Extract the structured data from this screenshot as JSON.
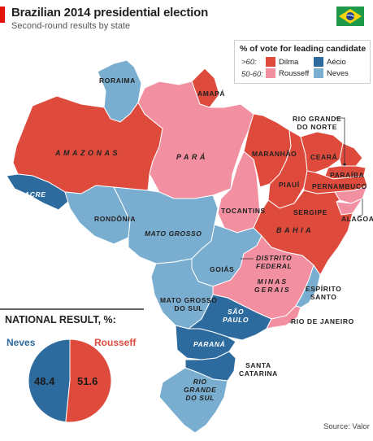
{
  "header": {
    "title": "Brazilian 2014 presidential election",
    "subtitle": "Second-round results by state"
  },
  "colors": {
    "rousseff_strong": "#de4a3c",
    "rousseff_light": "#f28fa0",
    "neves_strong": "#2d6b9e",
    "neves_light": "#7aaed0",
    "accent": "#e3120b"
  },
  "legend": {
    "title": "% of vote for leading candidate",
    "row_high": ">60:",
    "row_mid": "50-60:",
    "candidate_a": "Dilma\nRousseff",
    "candidate_b": "Aécio\nNeves"
  },
  "states": [
    {
      "name": "RORAIMA",
      "winner": "Neves",
      "band": "50-60"
    },
    {
      "name": "AMAPÁ",
      "winner": "Rousseff",
      "band": ">60"
    },
    {
      "name": "AMAZONAS",
      "winner": "Rousseff",
      "band": ">60"
    },
    {
      "name": "PARÁ",
      "winner": "Rousseff",
      "band": "50-60"
    },
    {
      "name": "ACRE",
      "winner": "Neves",
      "band": ">60"
    },
    {
      "name": "RONDÔNIA",
      "winner": "Neves",
      "band": "50-60"
    },
    {
      "name": "MATO GROSSO",
      "winner": "Neves",
      "band": "50-60"
    },
    {
      "name": "TOCANTINS",
      "winner": "Rousseff",
      "band": "50-60"
    },
    {
      "name": "MARANHÃO",
      "winner": "Rousseff",
      "band": ">60"
    },
    {
      "name": "PIAUÍ",
      "winner": "Rousseff",
      "band": ">60"
    },
    {
      "name": "CEARÁ",
      "winner": "Rousseff",
      "band": ">60"
    },
    {
      "name": "RIO GRANDE DO NORTE",
      "winner": "Rousseff",
      "band": ">60"
    },
    {
      "name": "PARAÍBA",
      "winner": "Rousseff",
      "band": ">60"
    },
    {
      "name": "PERNAMBUCO",
      "winner": "Rousseff",
      "band": ">60"
    },
    {
      "name": "ALAGOAS",
      "winner": "Rousseff",
      "band": "50-60"
    },
    {
      "name": "SERGIPE",
      "winner": "Rousseff",
      "band": "50-60"
    },
    {
      "name": "BAHIA",
      "winner": "Rousseff",
      "band": ">60"
    },
    {
      "name": "GOIÁS",
      "winner": "Neves",
      "band": "50-60"
    },
    {
      "name": "DISTRITO FEDERAL",
      "winner": "Neves",
      "band": ">60"
    },
    {
      "name": "MINAS GERAIS",
      "winner": "Rousseff",
      "band": "50-60"
    },
    {
      "name": "ESPÍRITO SANTO",
      "winner": "Neves",
      "band": "50-60"
    },
    {
      "name": "MATO GROSSO DO SUL",
      "winner": "Neves",
      "band": "50-60"
    },
    {
      "name": "SÃO PAULO",
      "winner": "Neves",
      "band": ">60"
    },
    {
      "name": "RIO DE JANEIRO",
      "winner": "Rousseff",
      "band": "50-60"
    },
    {
      "name": "PARANÁ",
      "winner": "Neves",
      "band": ">60"
    },
    {
      "name": "SANTA CATARINA",
      "winner": "Neves",
      "band": ">60"
    },
    {
      "name": "RIO GRANDE DO SUL",
      "winner": "Neves",
      "band": "50-60"
    }
  ],
  "labels": {
    "roraima": "RORAIMA",
    "amapa": "AMAPÁ",
    "amazonas": "AMAZONAS",
    "para": "PARÁ",
    "acre": "ACRE",
    "rondonia": "RONDÔNIA",
    "mato_grosso": "MATO GROSSO",
    "tocantins": "TOCANTINS",
    "maranhao": "MARANHÃO",
    "piaui": "PIAUÍ",
    "ceara": "CEARÁ",
    "rgn": "RIO GRANDE\nDO NORTE",
    "paraiba": "PARAÍBA",
    "pernambuco": "PERNAMBUCO",
    "alagoas": "ALAGOAS",
    "sergipe": "SERGIPE",
    "bahia": "BAHIA",
    "goias": "GOIÁS",
    "df": "DISTRITO\nFEDERAL",
    "minas": "MINAS\nGERAIS",
    "espirito": "ESPÍRITO\nSANTO",
    "mgs": "MATO GROSSO\nDO SUL",
    "sao_paulo": "SÃO\nPAULO",
    "rio": "RIO DE JANEIRO",
    "parana": "PARANÁ",
    "santa_catarina": "SANTA\nCATARINA",
    "rgs": "RIO\nGRANDE\nDO SUL"
  },
  "national": {
    "title": "NATIONAL RESULT, %:",
    "left_name": "Neves",
    "right_name": "Rousseff",
    "left_value": "48.4",
    "right_value": "51.6"
  },
  "chart_data": {
    "type": "pie",
    "categories": [
      "Neves",
      "Rousseff"
    ],
    "values": [
      48.4,
      51.6
    ]
  },
  "source": "Source: Valor"
}
